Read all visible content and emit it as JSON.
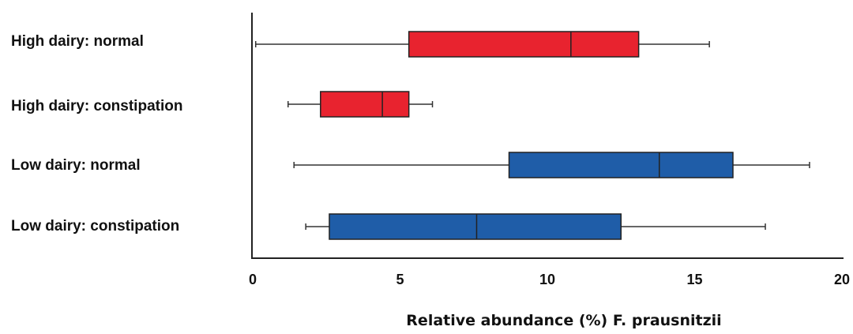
{
  "chart_data": {
    "type": "boxplot",
    "orientation": "horizontal",
    "title": "",
    "xlabel": "Relative abundance (%) F. prausnitzii",
    "ylabel": "",
    "xlim": [
      0,
      20
    ],
    "xticks": [
      0,
      5,
      10,
      15,
      20
    ],
    "grid": false,
    "categories": [
      "High dairy: normal",
      "High dairy: constipation",
      "Low dairy: normal",
      "Low dairy: constipation"
    ],
    "boxes": [
      {
        "label": "High dairy: normal",
        "min": 0.1,
        "q1": 5.3,
        "median": 10.8,
        "q3": 13.1,
        "max": 15.5,
        "color": "#e8232f"
      },
      {
        "label": "High dairy: constipation",
        "min": 1.2,
        "q1": 2.3,
        "median": 4.4,
        "q3": 5.3,
        "max": 6.1,
        "color": "#e8232f"
      },
      {
        "label": "Low dairy: normal",
        "min": 1.4,
        "q1": 8.7,
        "median": 13.8,
        "q3": 16.3,
        "max": 18.9,
        "color": "#1f5da8"
      },
      {
        "label": "Low dairy: constipation",
        "min": 1.8,
        "q1": 2.6,
        "median": 7.6,
        "q3": 12.5,
        "max": 17.4,
        "color": "#1f5da8"
      }
    ]
  }
}
